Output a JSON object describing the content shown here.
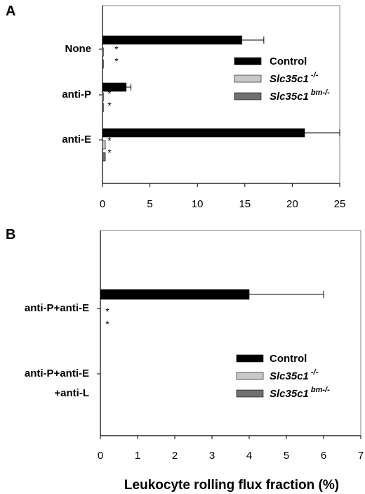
{
  "chart_data": [
    {
      "panel": "A",
      "type": "bar",
      "orientation": "horizontal",
      "categories": [
        "None",
        "anti-P",
        "anti-E"
      ],
      "series": [
        {
          "name": "Control",
          "sup": "",
          "color": "#000000",
          "values": [
            14.7,
            2.5,
            21.3
          ],
          "errors": [
            2.3,
            0.5,
            3.7
          ]
        },
        {
          "name": "Slc35c1",
          "sup": "-/-",
          "color": "#c8c8c8",
          "values": [
            0.1,
            0.1,
            0.3
          ],
          "errors": [
            0,
            0,
            0
          ]
        },
        {
          "name": "Slc35c1",
          "sup": "bm-/-",
          "color": "#707070",
          "values": [
            0.1,
            0.1,
            0.3
          ],
          "errors": [
            0,
            0,
            0
          ]
        }
      ],
      "significance": [
        "*",
        "*"
      ],
      "xlim": [
        0,
        25
      ],
      "xticks": [
        "0",
        "5",
        "10",
        "15",
        "20",
        "25"
      ],
      "legend_position": "right"
    },
    {
      "panel": "B",
      "type": "bar",
      "orientation": "horizontal",
      "categories": [
        "anti-P+anti-E",
        "anti-P+anti-E\n+anti-L"
      ],
      "series": [
        {
          "name": "Control",
          "sup": "",
          "color": "#000000",
          "values": [
            4.0,
            0
          ],
          "errors": [
            2.0,
            0
          ]
        },
        {
          "name": "Slc35c1",
          "sup": "-/-",
          "color": "#c8c8c8",
          "values": [
            0,
            0
          ],
          "errors": [
            0,
            0
          ]
        },
        {
          "name": "Slc35c1",
          "sup": "bm-/-",
          "color": "#707070",
          "values": [
            0,
            0
          ],
          "errors": [
            0,
            0
          ]
        }
      ],
      "significance": [
        "*",
        "*"
      ],
      "xlim": [
        0,
        7
      ],
      "xticks": [
        "0",
        "1",
        "2",
        "3",
        "4",
        "5",
        "6",
        "7"
      ],
      "legend_position": "bottom-right"
    }
  ],
  "xlabel": "Leukocyte rolling flux fraction (%)"
}
